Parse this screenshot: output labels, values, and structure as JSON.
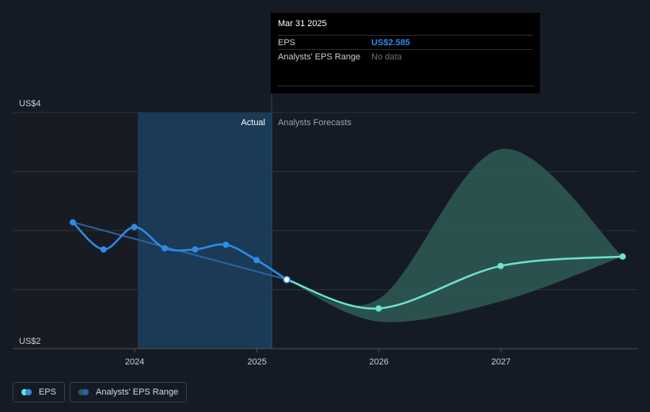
{
  "tooltip": {
    "date": "Mar 31 2025",
    "rows": [
      {
        "label": "EPS",
        "value": "US$2.585"
      },
      {
        "label": "Analysts' EPS Range",
        "value": "No data"
      }
    ]
  },
  "regions": {
    "actual": "Actual",
    "forecast": "Analysts Forecasts"
  },
  "legend": {
    "eps": "EPS",
    "range": "Analysts' EPS Range"
  },
  "colors": {
    "eps_actual": "#2f8be8",
    "eps_forecast": "#6be3d0",
    "range_fill": "#2f5b57",
    "past_band": "#1a3a56"
  },
  "chart_data": {
    "type": "line",
    "y_tick_labels": [
      "US$2",
      "US$4"
    ],
    "ylim": [
      2,
      4
    ],
    "x_tick_labels": [
      "2024",
      "2025",
      "2026",
      "2027"
    ],
    "series": [
      {
        "name": "EPS",
        "kind": "actual",
        "x": [
          "2023-06-30",
          "2023-09-30",
          "2023-12-31",
          "2024-03-31",
          "2024-06-30",
          "2024-09-30",
          "2024-12-31",
          "2025-03-31"
        ],
        "y": [
          3.07,
          2.84,
          3.03,
          2.85,
          2.84,
          2.88,
          2.75,
          2.585
        ]
      },
      {
        "name": "EPS",
        "kind": "forecast",
        "x": [
          "2025-03-31",
          "2025-12-31",
          "2026-12-31",
          "2027-12-31"
        ],
        "y": [
          2.585,
          2.34,
          2.7,
          2.78
        ]
      },
      {
        "name": "Analysts' EPS Range",
        "kind": "range",
        "x": [
          "2025-03-31",
          "2025-12-31",
          "2026-12-31",
          "2027-12-31"
        ],
        "low": [
          2.585,
          2.23,
          2.4,
          2.78
        ],
        "high": [
          2.585,
          2.42,
          3.69,
          2.78
        ]
      }
    ],
    "trend_line": {
      "x": [
        "2023-06-30",
        "2025-03-31"
      ],
      "y": [
        3.07,
        2.585
      ]
    },
    "highlight_point": {
      "x": "2025-03-31",
      "y": 2.585
    },
    "grid": true,
    "legend_position": "bottom-left"
  }
}
